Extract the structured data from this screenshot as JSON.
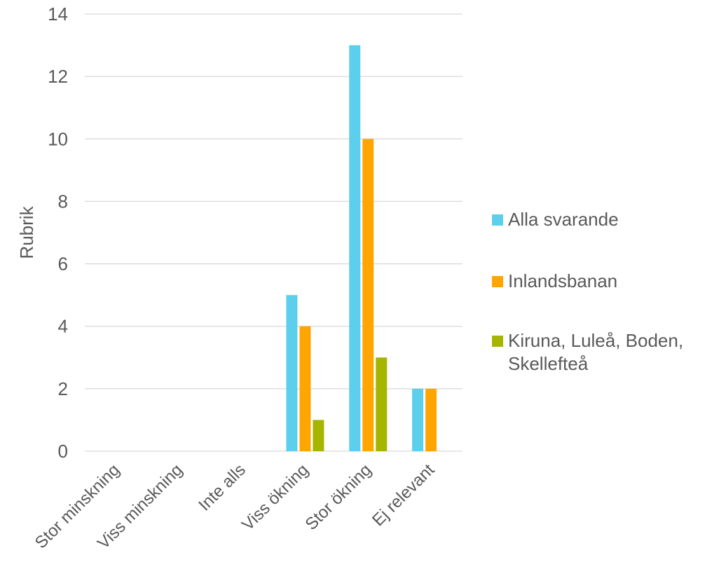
{
  "chart_data": {
    "type": "bar",
    "title": "",
    "xlabel": "",
    "ylabel": "Rubrik",
    "ylim": [
      0,
      14
    ],
    "ytick_step": 2,
    "grid": true,
    "legend_position": "right",
    "categories": [
      "Stor minskning",
      "Viss minskning",
      "Inte alls",
      "Viss ökning",
      "Stor ökning",
      "Ej relevant"
    ],
    "series": [
      {
        "name": "Alla svarande",
        "color": "#5BCFEB",
        "values": [
          0,
          0,
          0,
          5,
          13,
          2
        ]
      },
      {
        "name": "Inlandsbanan",
        "color": "#FFA500",
        "values": [
          0,
          0,
          0,
          4,
          10,
          2
        ]
      },
      {
        "name": "Kiruna, Luleå, Boden, Skellefteå",
        "name_lines": [
          "Kiruna, Luleå, Boden,",
          "Skellefteå"
        ],
        "color": "#A5B500",
        "values": [
          0,
          0,
          0,
          1,
          3,
          0
        ]
      }
    ]
  },
  "colors": {
    "gridline": "#D9D9D9",
    "text": "#595959",
    "background": "#FFFFFF"
  }
}
